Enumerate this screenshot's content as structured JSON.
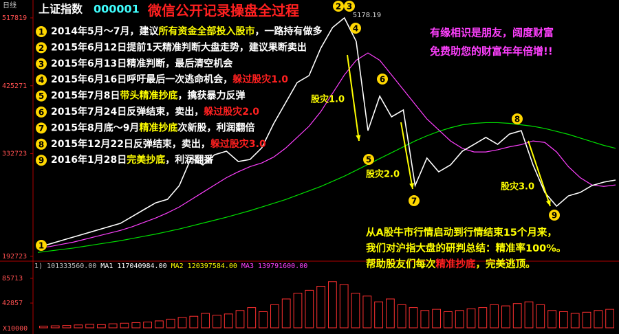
{
  "chart_data": [
    {
      "type": "line",
      "period": "日线",
      "symbol": "上证指数",
      "code": "000001",
      "title": "微信公开记录操盘全过程",
      "ylim": [
        1880,
        5328
      ],
      "yticks": [
        {
          "value": 5178.19,
          "label": "517819"
        },
        {
          "value": 4252.71,
          "label": "425271"
        },
        {
          "value": 3327.23,
          "label": "332723"
        },
        {
          "value": 1927.23,
          "label": "192723"
        }
      ],
      "peak": 5178.19,
      "series": [
        {
          "color": "#ffffff",
          "values": [
            2049,
            2095,
            2142,
            2189,
            2236,
            2283,
            2330,
            2376,
            2470,
            2564,
            2657,
            2704,
            2892,
            3267,
            3173,
            3313,
            3360,
            3220,
            3248,
            3407,
            3735,
            4016,
            4297,
            4391,
            4766,
            5047,
            5178,
            4859,
            3641,
            4110,
            3829,
            3922,
            2892,
            3267,
            3079,
            3173,
            3360,
            3454,
            3548,
            3454,
            3594,
            3641,
            3173,
            2798,
            2611,
            2751,
            2798,
            2892,
            2939,
            2967
          ]
        },
        {
          "color": "#ff40ff",
          "values": [
            2040,
            2060,
            2090,
            2120,
            2160,
            2200,
            2240,
            2280,
            2330,
            2390,
            2450,
            2520,
            2600,
            2700,
            2800,
            2900,
            3000,
            3080,
            3150,
            3200,
            3280,
            3400,
            3550,
            3700,
            3900,
            4150,
            4400,
            4600,
            4700,
            4600,
            4400,
            4200,
            4000,
            3800,
            3650,
            3500,
            3400,
            3350,
            3350,
            3380,
            3420,
            3450,
            3500,
            3480,
            3350,
            3150,
            3000,
            2900,
            2880,
            2900
          ]
        },
        {
          "color": "#00e000",
          "values": [
            1980,
            2000,
            2020,
            2040,
            2065,
            2090,
            2115,
            2140,
            2170,
            2200,
            2230,
            2265,
            2300,
            2340,
            2380,
            2420,
            2460,
            2505,
            2550,
            2600,
            2650,
            2700,
            2760,
            2820,
            2880,
            2950,
            3020,
            3100,
            3180,
            3260,
            3340,
            3420,
            3500,
            3570,
            3630,
            3680,
            3720,
            3740,
            3750,
            3750,
            3740,
            3720,
            3700,
            3670,
            3630,
            3590,
            3540,
            3490,
            3440,
            3400
          ]
        }
      ],
      "markers": [
        "1",
        "2",
        "3",
        "4",
        "5",
        "6",
        "7",
        "8",
        "9"
      ],
      "crashes": [
        "股灾1.0",
        "股灾2.0",
        "股灾3.0"
      ],
      "notes": [
        {
          "num": "1",
          "parts": [
            {
              "text": "2014年5月～7月，建议",
              "color": "#ffffff"
            },
            {
              "text": "所有资金全部投入股市",
              "color": "#ffff00"
            },
            {
              "text": "，一路持有做多",
              "color": "#ffffff"
            }
          ]
        },
        {
          "num": "2",
          "parts": [
            {
              "text": "2015年6月12日提前1天精准判断大盘走势，建议果断卖出",
              "color": "#ffffff"
            }
          ]
        },
        {
          "num": "3",
          "parts": [
            {
              "text": "2015年6月13日精准判断，最后清空机会",
              "color": "#ffffff"
            }
          ]
        },
        {
          "num": "4",
          "parts": [
            {
              "text": "2015年6月16日呼吁最后一次逃命机会，",
              "color": "#ffffff"
            },
            {
              "text": "躲过股灾1.0",
              "color": "#ff2020"
            }
          ]
        },
        {
          "num": "5",
          "parts": [
            {
              "text": "2015年7月8日",
              "color": "#ffffff"
            },
            {
              "text": "带头精准抄底",
              "color": "#ffff00"
            },
            {
              "text": "，擒获暴力反弹",
              "color": "#ffffff"
            }
          ]
        },
        {
          "num": "6",
          "parts": [
            {
              "text": "2015年7月24日反弹结束，卖出，",
              "color": "#ffffff"
            },
            {
              "text": "躲过股灾2.0",
              "color": "#ff2020"
            }
          ]
        },
        {
          "num": "7",
          "parts": [
            {
              "text": "2015年8月底～9月",
              "color": "#ffffff"
            },
            {
              "text": "精准抄底",
              "color": "#ffff00"
            },
            {
              "text": "次新股，利润翻倍",
              "color": "#ffffff"
            }
          ]
        },
        {
          "num": "8",
          "parts": [
            {
              "text": "2015年12月22日反弹结束，卖出，",
              "color": "#ffffff"
            },
            {
              "text": "躲过股灾3.0",
              "color": "#ff2020"
            }
          ]
        },
        {
          "num": "9",
          "parts": [
            {
              "text": "2016年1月28日",
              "color": "#ffffff"
            },
            {
              "text": "完美抄底",
              "color": "#ffff00"
            },
            {
              "text": "，利润翻番",
              "color": "#ffffff"
            }
          ]
        }
      ],
      "promo": [
        "有缘相识是朋友，阔度财富",
        "免费助您的财富年年倍增!!"
      ],
      "summary": [
        {
          "parts": [
            {
              "text": "从A股牛市行情启动到行情结束15个月来，",
              "color": "#ffff00"
            }
          ]
        },
        {
          "parts": [
            {
              "text": "我们对沪指大盘的研判总结：精准率100%。",
              "color": "#ffff00"
            }
          ]
        },
        {
          "parts": [
            {
              "text": "帮助股友们每次",
              "color": "#ffff00"
            },
            {
              "text": "精准抄底",
              "color": "#ff2020"
            },
            {
              "text": "，完美逃顶。",
              "color": "#ffff00"
            }
          ]
        }
      ]
    },
    {
      "type": "bar",
      "unit": "X10000",
      "color": "#ff3030",
      "legend": [
        {
          "text": "1)",
          "color": "#c0c0c0"
        },
        {
          "text": "101333560.00",
          "color": "#c0c0c0"
        },
        {
          "text": "MA1",
          "color": "#ffffff"
        },
        {
          "text": "117040984.00",
          "color": "#ffffff"
        },
        {
          "text": "MA2",
          "color": "#ffff00"
        },
        {
          "text": "120397584.00",
          "color": "#ffff00"
        },
        {
          "text": "MA3",
          "color": "#ff40ff"
        },
        {
          "text": "139791600.00",
          "color": "#ff40ff"
        }
      ],
      "ylim": [
        0,
        97600
      ],
      "yticks": [
        85713,
        42857
      ],
      "values": [
        3000,
        3500,
        4000,
        5000,
        6000,
        5500,
        7000,
        8000,
        9000,
        10000,
        12000,
        15000,
        18000,
        20000,
        25000,
        22000,
        24000,
        30000,
        35000,
        28000,
        40000,
        50000,
        60000,
        65000,
        72000,
        80000,
        75000,
        60000,
        55000,
        45000,
        50000,
        40000,
        35000,
        30000,
        32000,
        28000,
        30000,
        33000,
        35000,
        40000,
        38000,
        42000,
        45000,
        40000,
        30000,
        28000,
        25000,
        27000,
        30000,
        32000
      ]
    }
  ]
}
